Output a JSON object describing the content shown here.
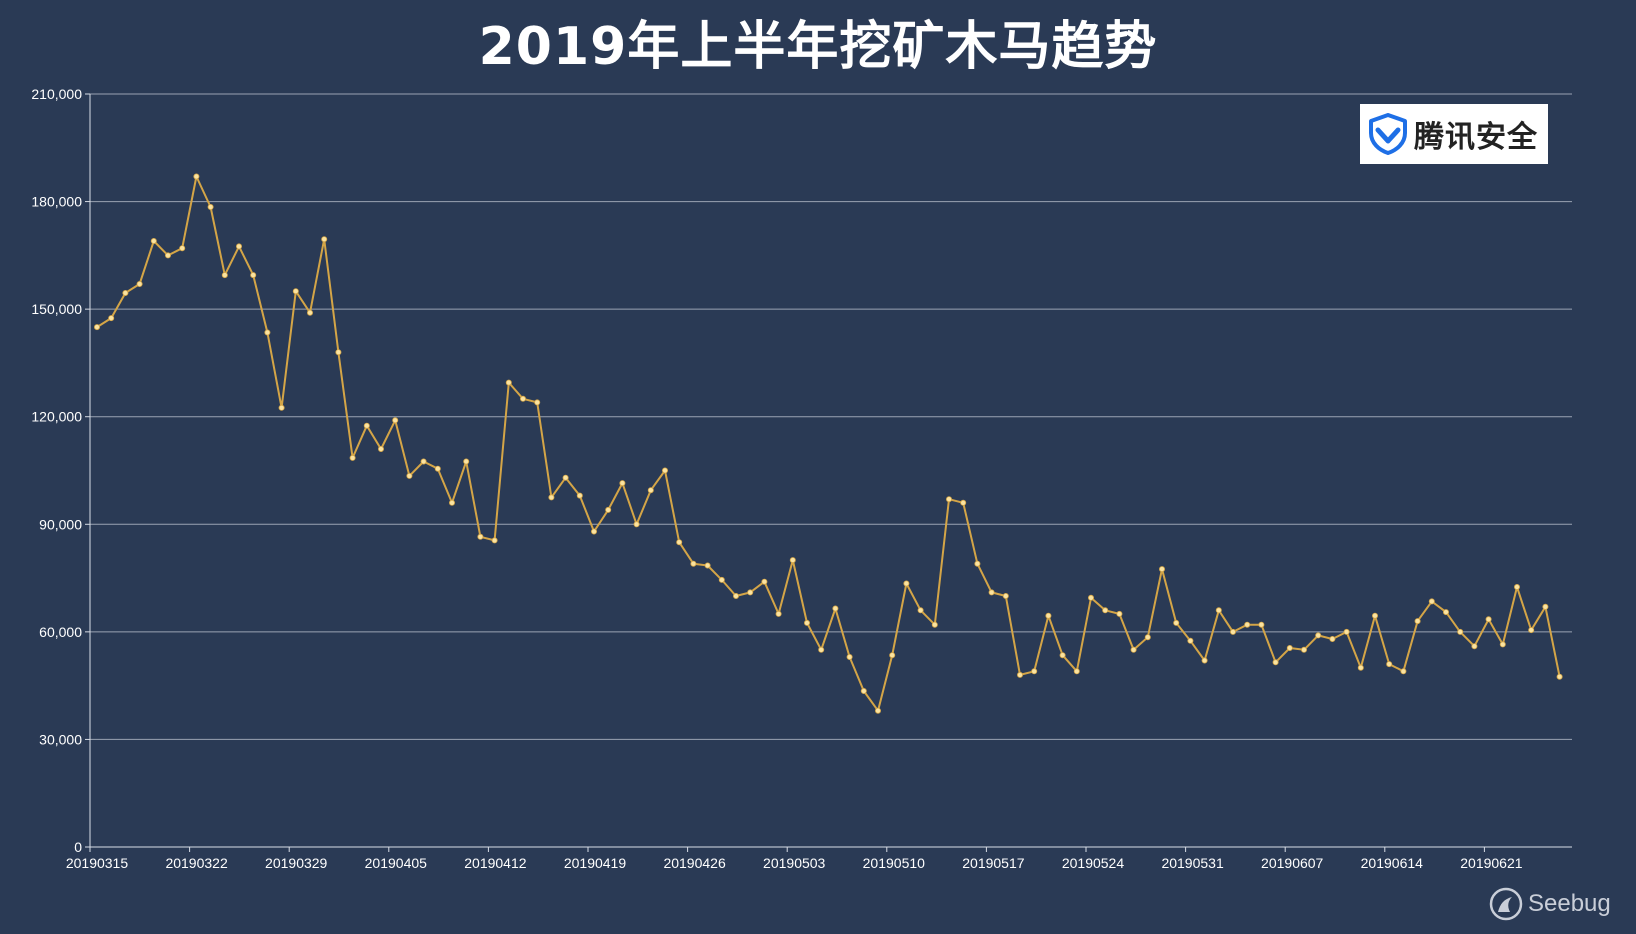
{
  "chart_data": {
    "type": "line",
    "title": "2019年上半年挖矿木马趋势",
    "xlabel": "",
    "ylabel": "",
    "ylim": [
      0,
      210000
    ],
    "yticks": [
      0,
      30000,
      60000,
      90000,
      120000,
      150000,
      180000,
      210000
    ],
    "ytick_labels": [
      "0",
      "30,000",
      "60,000",
      "90,000",
      "120,000",
      "150,000",
      "180,000",
      "210,000"
    ],
    "x_tick_labels": [
      "20190315",
      "20190322",
      "20190329",
      "20190405",
      "20190412",
      "20190419",
      "20190426",
      "20190503",
      "20190510",
      "20190517",
      "20190524",
      "20190531",
      "20190607",
      "20190614",
      "20190621"
    ],
    "grid": true,
    "line_color": "#d4a547",
    "point_color": "#fbe3a0",
    "series": [
      {
        "values": [
          145000,
          147500,
          154500,
          157000,
          169000,
          165000,
          167000,
          187000,
          178500,
          159500,
          167500,
          159500,
          143500,
          122500,
          155000,
          149000,
          169500,
          138000,
          108500,
          117500,
          111000,
          119000,
          103500,
          107500,
          105500,
          96000,
          107500,
          86500,
          85500,
          129500,
          125000,
          124000,
          97500,
          103000,
          98000,
          88000,
          94000,
          101500,
          90000,
          99500,
          105000,
          85000,
          79000,
          78500,
          74500,
          70000,
          71000,
          74000,
          65000,
          80000,
          62500,
          55000,
          66500,
          53000,
          43500,
          38000,
          53500,
          73500,
          66000,
          62000,
          97000,
          96000,
          79000,
          71000,
          70000,
          48000,
          49000,
          64500,
          53500,
          49000,
          69500,
          66000,
          65000,
          55000,
          58500,
          77500,
          62500,
          57500,
          52000,
          66000,
          60000,
          62000,
          62000,
          51500,
          55500,
          55000,
          59000,
          58000,
          60000,
          50000,
          64500,
          51000,
          49000,
          63000,
          68500,
          65500,
          60000,
          56000,
          63500,
          56500,
          72500,
          60500,
          67000,
          47500
        ]
      }
    ]
  },
  "logo": {
    "text": "腾讯安全",
    "icon": "tencent-security-shield-icon",
    "icon_color": "#1e6fe6"
  },
  "watermark": {
    "text": "Seebug",
    "icon": "seebug-logo-icon"
  },
  "colors": {
    "background": "#2a3a55",
    "grid": "#9aa3b3",
    "axis": "#d8dde6",
    "text": "#ffffff"
  }
}
